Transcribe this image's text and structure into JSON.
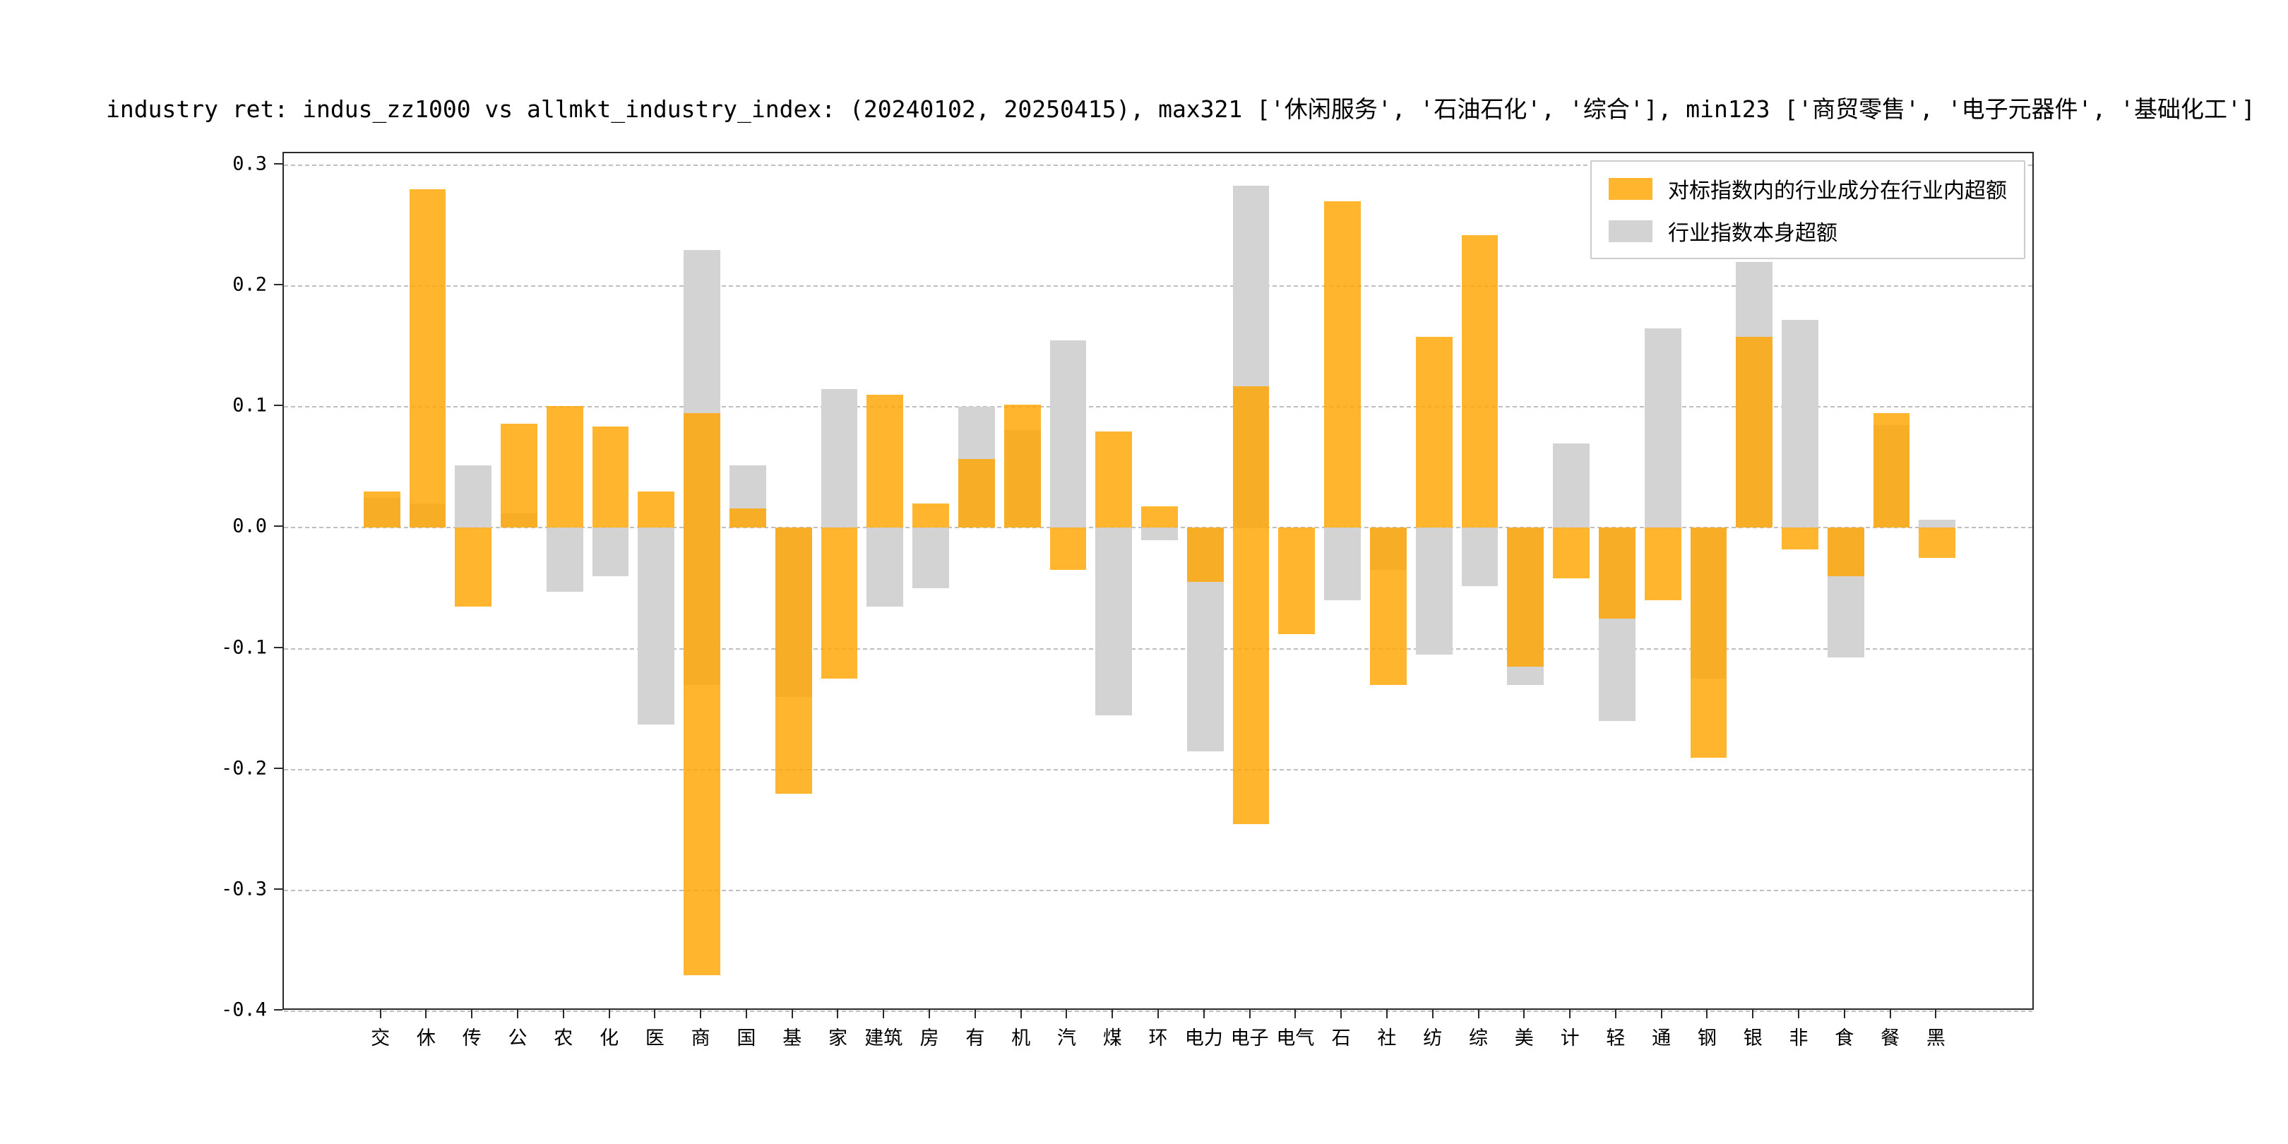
{
  "title": "industry ret: indus_zz1000 vs allmkt_industry_index: (20240102, 20250415), max321 ['休闲服务', '石油石化', '综合'], min123 ['商贸零售', '电子元器件', '基础化工']",
  "chart_data": {
    "type": "bar",
    "title": "industry ret: indus_zz1000 vs allmkt_industry_index: (20240102, 20250415), max321 ['休闲服务', '石油石化', '综合'], min123 ['商贸零售', '电子元器件', '基础化工']",
    "categories": [
      "交",
      "休",
      "传",
      "公",
      "农",
      "化",
      "医",
      "商",
      "国",
      "基",
      "家",
      "建筑",
      "房",
      "有",
      "机",
      "汽",
      "煤",
      "环",
      "电力",
      "电子",
      "电气",
      "石",
      "社",
      "纺",
      "综",
      "美",
      "计",
      "轻",
      "通",
      "钢",
      "银",
      "非",
      "食",
      "餐",
      "黑"
    ],
    "series": [
      {
        "name": "对标指数内的行业成分在行业内超额",
        "color": "#FFA500",
        "opacity": 0.82,
        "ranges": [
          [
            0,
            0.03
          ],
          [
            0,
            0.28
          ],
          [
            -0.065,
            0
          ],
          [
            0,
            0.086
          ],
          [
            0,
            0.101
          ],
          [
            0,
            0.084
          ],
          [
            0,
            0.03
          ],
          [
            -0.37,
            0.095
          ],
          [
            0,
            0.016
          ],
          [
            -0.22,
            0
          ],
          [
            -0.125,
            0
          ],
          [
            0,
            0.11
          ],
          [
            0,
            0.02
          ],
          [
            0,
            0.057
          ],
          [
            0,
            0.102
          ],
          [
            -0.035,
            0
          ],
          [
            0,
            0.08
          ],
          [
            0,
            0.018
          ],
          [
            -0.045,
            0
          ],
          [
            -0.245,
            0.117
          ],
          [
            -0.088,
            0
          ],
          [
            0,
            0.27
          ],
          [
            -0.13,
            0
          ],
          [
            0,
            0.158
          ],
          [
            0,
            0.242
          ],
          [
            -0.115,
            0
          ],
          [
            -0.042,
            0
          ],
          [
            -0.075,
            0
          ],
          [
            -0.06,
            0
          ],
          [
            -0.19,
            0
          ],
          [
            0,
            0.158
          ],
          [
            -0.018,
            0
          ],
          [
            -0.04,
            0
          ],
          [
            0,
            0.095
          ],
          [
            -0.025,
            0
          ]
        ]
      },
      {
        "name": "行业指数本身超额",
        "color": "#D3D3D3",
        "opacity": 1.0,
        "ranges": [
          [
            0,
            0.025
          ],
          [
            0,
            0.02
          ],
          [
            0,
            0.052
          ],
          [
            0,
            0.012
          ],
          [
            -0.053,
            0
          ],
          [
            -0.04,
            0
          ],
          [
            -0.163,
            0
          ],
          [
            -0.13,
            0.23
          ],
          [
            0,
            0.052
          ],
          [
            -0.14,
            0
          ],
          [
            0,
            0.115
          ],
          [
            -0.065,
            0
          ],
          [
            -0.05,
            0
          ],
          [
            0,
            0.1
          ],
          [
            0,
            0.081
          ],
          [
            0,
            0.155
          ],
          [
            -0.155,
            0
          ],
          [
            -0.01,
            0
          ],
          [
            -0.185,
            0
          ],
          [
            0,
            0.283
          ],
          [
            0,
            0
          ],
          [
            -0.06,
            0
          ],
          [
            -0.035,
            0
          ],
          [
            -0.105,
            0
          ],
          [
            -0.048,
            0
          ],
          [
            -0.13,
            0
          ],
          [
            0,
            0.07
          ],
          [
            -0.16,
            0
          ],
          [
            0,
            0.165
          ],
          [
            -0.125,
            0
          ],
          [
            0,
            0.22
          ],
          [
            0,
            0.172
          ],
          [
            -0.107,
            0
          ],
          [
            0,
            0.085
          ],
          [
            0,
            0.007
          ]
        ]
      }
    ],
    "ylim": [
      -0.4,
      0.31
    ],
    "xlim": [
      -2.14,
      36.14
    ],
    "yticks": [
      0.3,
      0.2,
      0.1,
      0.0,
      -0.1,
      -0.2,
      -0.3,
      -0.4
    ],
    "ytick_labels": [
      "0.3",
      "0.2",
      "0.1",
      "0.0",
      "-0.1",
      "-0.2",
      "-0.3",
      "-0.4"
    ],
    "grid": "dashed-horizontal",
    "legend_position": "upper right",
    "bar_width_fraction": 0.8,
    "draw_order": "gray-below-orange"
  }
}
